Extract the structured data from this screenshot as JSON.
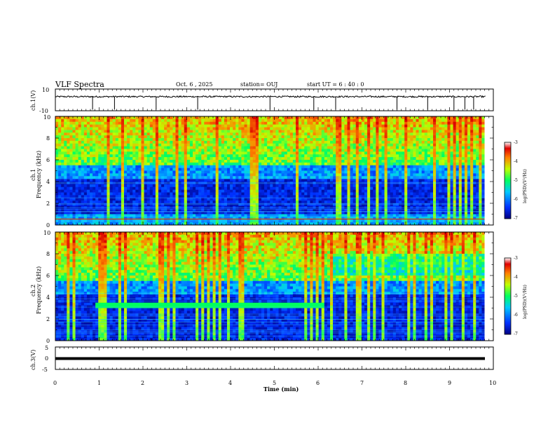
{
  "header": {
    "title": "VLF Spectra",
    "date": "Oct. 6 , 2025",
    "station": "station= OUJ",
    "start": "start UT =  6 : 40 : 0"
  },
  "chart_data": [
    {
      "type": "line",
      "id": "ch1-waveform",
      "ylabel": "ch.1(V)",
      "ylim": [
        -10,
        10
      ],
      "yticklabels": [
        "10",
        "-10"
      ],
      "xlim": [
        0,
        10
      ],
      "baseline": 3,
      "noise": 0.7,
      "spike_times_min": [
        0.85,
        1.35,
        2.3,
        3.25,
        4.9,
        5.9,
        6.4,
        7.8,
        8.5,
        9.1,
        9.35,
        9.55
      ]
    },
    {
      "type": "heatmap",
      "id": "ch1-spectrogram",
      "ylabel": "Frequency (kHz)",
      "channel_label": "ch.1",
      "xlim": [
        0,
        9.8
      ],
      "ylim": [
        0,
        10
      ],
      "yticklabels": [
        "0",
        "2",
        "4",
        "6",
        "8",
        "10"
      ],
      "colorbar": {
        "label": "log(PSD)(V²/Hz)",
        "range": [
          -7,
          -3
        ],
        "ticklabels": [
          "-3",
          "-4",
          "-5",
          "-6",
          "-7"
        ],
        "colors": [
          "#00008a",
          "#0050ff",
          "#00c8ff",
          "#00ff80",
          "#c8ff00",
          "#ff8000",
          "#c80000"
        ]
      }
    },
    {
      "type": "heatmap",
      "id": "ch2-spectrogram",
      "ylabel": "Frequency (kHz)",
      "channel_label": "ch.2",
      "xlim": [
        0,
        9.8
      ],
      "ylim": [
        0,
        10
      ],
      "yticklabels": [
        "0",
        "2",
        "4",
        "6",
        "8",
        "10"
      ],
      "band": {
        "t_start": 0.85,
        "t_end": 6.1,
        "f_low": 3.1,
        "f_high": 3.5
      },
      "colorbar": {
        "label": "log(PSD)(V²/Hz)",
        "range": [
          -7,
          -3
        ],
        "ticklabels": [
          "-3",
          "-4",
          "-5",
          "-6",
          "-7"
        ],
        "colors": [
          "#00008a",
          "#0050ff",
          "#00c8ff",
          "#00ff80",
          "#c8ff00",
          "#ff8000",
          "#c80000"
        ]
      }
    },
    {
      "type": "line",
      "id": "ch3-waveform",
      "ylabel": "ch.3(V)",
      "ylim": [
        -5,
        5
      ],
      "yticklabels": [
        "5",
        "0",
        "-5"
      ],
      "xlim": [
        0,
        10
      ],
      "baseline": 0,
      "xlabel": "Time (min)",
      "xticklabels": [
        "0",
        "1",
        "2",
        "3",
        "4",
        "5",
        "6",
        "7",
        "8",
        "9",
        "10"
      ]
    }
  ]
}
